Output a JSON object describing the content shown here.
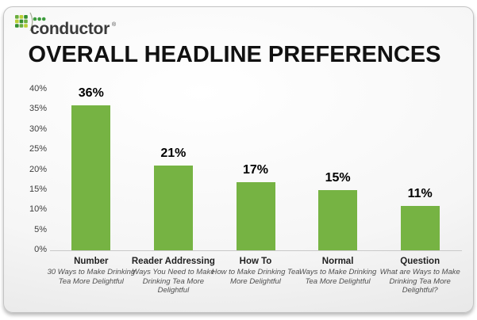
{
  "logo": {
    "text": "conductor",
    "registered": "®"
  },
  "title": "OVERALL HEADLINE PREFERENCES",
  "chart_data": {
    "type": "bar",
    "title": "OVERALL HEADLINE PREFERENCES",
    "categories": [
      "Number",
      "Reader Addressing",
      "How To",
      "Normal",
      "Question"
    ],
    "subtitles": [
      "30 Ways to Make Drinking Tea More Delightful",
      "Ways You Need to Make Drinking Tea More Delightful",
      "How to Make Drinking Tea More Delightful",
      "Ways to Make Drinking Tea More Delightful",
      "What are Ways to Make Drinking Tea More Delightful?"
    ],
    "values": [
      36,
      21,
      17,
      15,
      11
    ],
    "value_labels": [
      "36%",
      "21%",
      "17%",
      "15%",
      "11%"
    ],
    "ylim": [
      0,
      40
    ],
    "ytick_step": 5,
    "ytick_labels": [
      "0%",
      "5%",
      "10%",
      "15%",
      "20%",
      "25%",
      "30%",
      "35%",
      "40%"
    ],
    "grid": false,
    "legend": false,
    "bar_color": "#76B343",
    "axis_line_color": "#C9C9C9",
    "logo_greens": [
      "#35902f",
      "#6aae3d",
      "#b9cf35"
    ]
  }
}
